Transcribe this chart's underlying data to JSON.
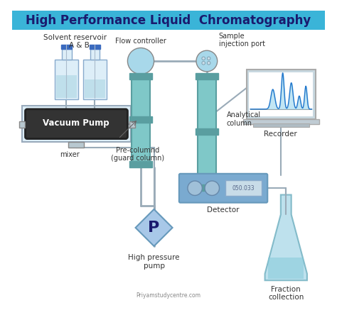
{
  "title": "High Performance Liquid  Chromatography",
  "title_bg": "#3ab4d8",
  "title_color": "#1a1a6e",
  "bg_color": "#ffffff",
  "watermark": "Priyamstudycentre.com",
  "labels": {
    "solvent_reservoir": "Solvent reservoir\n    A & B",
    "flow_controller": "Flow controller",
    "pre_column": "Pre-columnd\n(guard column)",
    "sample_injection": "Sample\ninjection port",
    "analytical_column": "Analytical\ncolumn",
    "recorder": "Recorder",
    "vacuum_pump": "Vacuum Pump",
    "mixer": "mixer",
    "pressure_pump": "High pressure\npump",
    "detector": "Detector",
    "fraction": "Fraction\ncollection"
  },
  "colors": {
    "light_blue": "#a8d8ea",
    "teal_col": "#7fc8c8",
    "teal_cap": "#5a9ea0",
    "gray_med": "#b0b8c8",
    "gray_dark": "#888888",
    "bottle_liquid": "#b8dce8",
    "bottle_body": "#ddeef8",
    "bottle_cap": "#3a6abf",
    "pump_bg": "#333333",
    "line_color": "#9aabb8",
    "pump_diamond": "#a8c8e8",
    "detector_bg": "#7aaad0",
    "recorder_screen": "#e8f4f8",
    "flask_body": "#a8d8e8",
    "flask_liquid": "#7fc8d8",
    "connector_gray": "#b8c8d0"
  }
}
